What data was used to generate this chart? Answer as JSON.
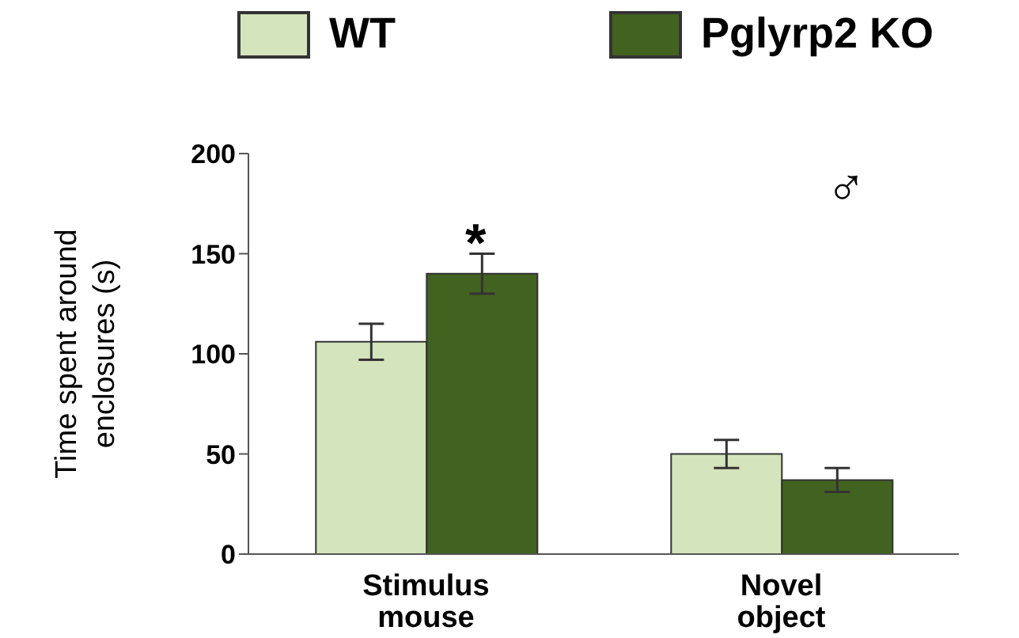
{
  "chart_data": {
    "type": "bar",
    "ylabel": "Time spent around\nenclosures (s)",
    "categories": [
      "Stimulus\nmouse",
      "Novel\nobject"
    ],
    "series": [
      {
        "name": "WT",
        "color": "#d4e4bc",
        "values": [
          106,
          50
        ],
        "errors": [
          9,
          7
        ]
      },
      {
        "name": "Pglyrp2 KO",
        "color": "#42631f",
        "values": [
          140,
          37
        ],
        "errors": [
          10,
          6
        ]
      }
    ],
    "ylim": [
      0,
      200
    ],
    "yticks": [
      0,
      50,
      100,
      150,
      200
    ],
    "legend": "top",
    "annotations": [
      "*",
      "♂"
    ]
  }
}
